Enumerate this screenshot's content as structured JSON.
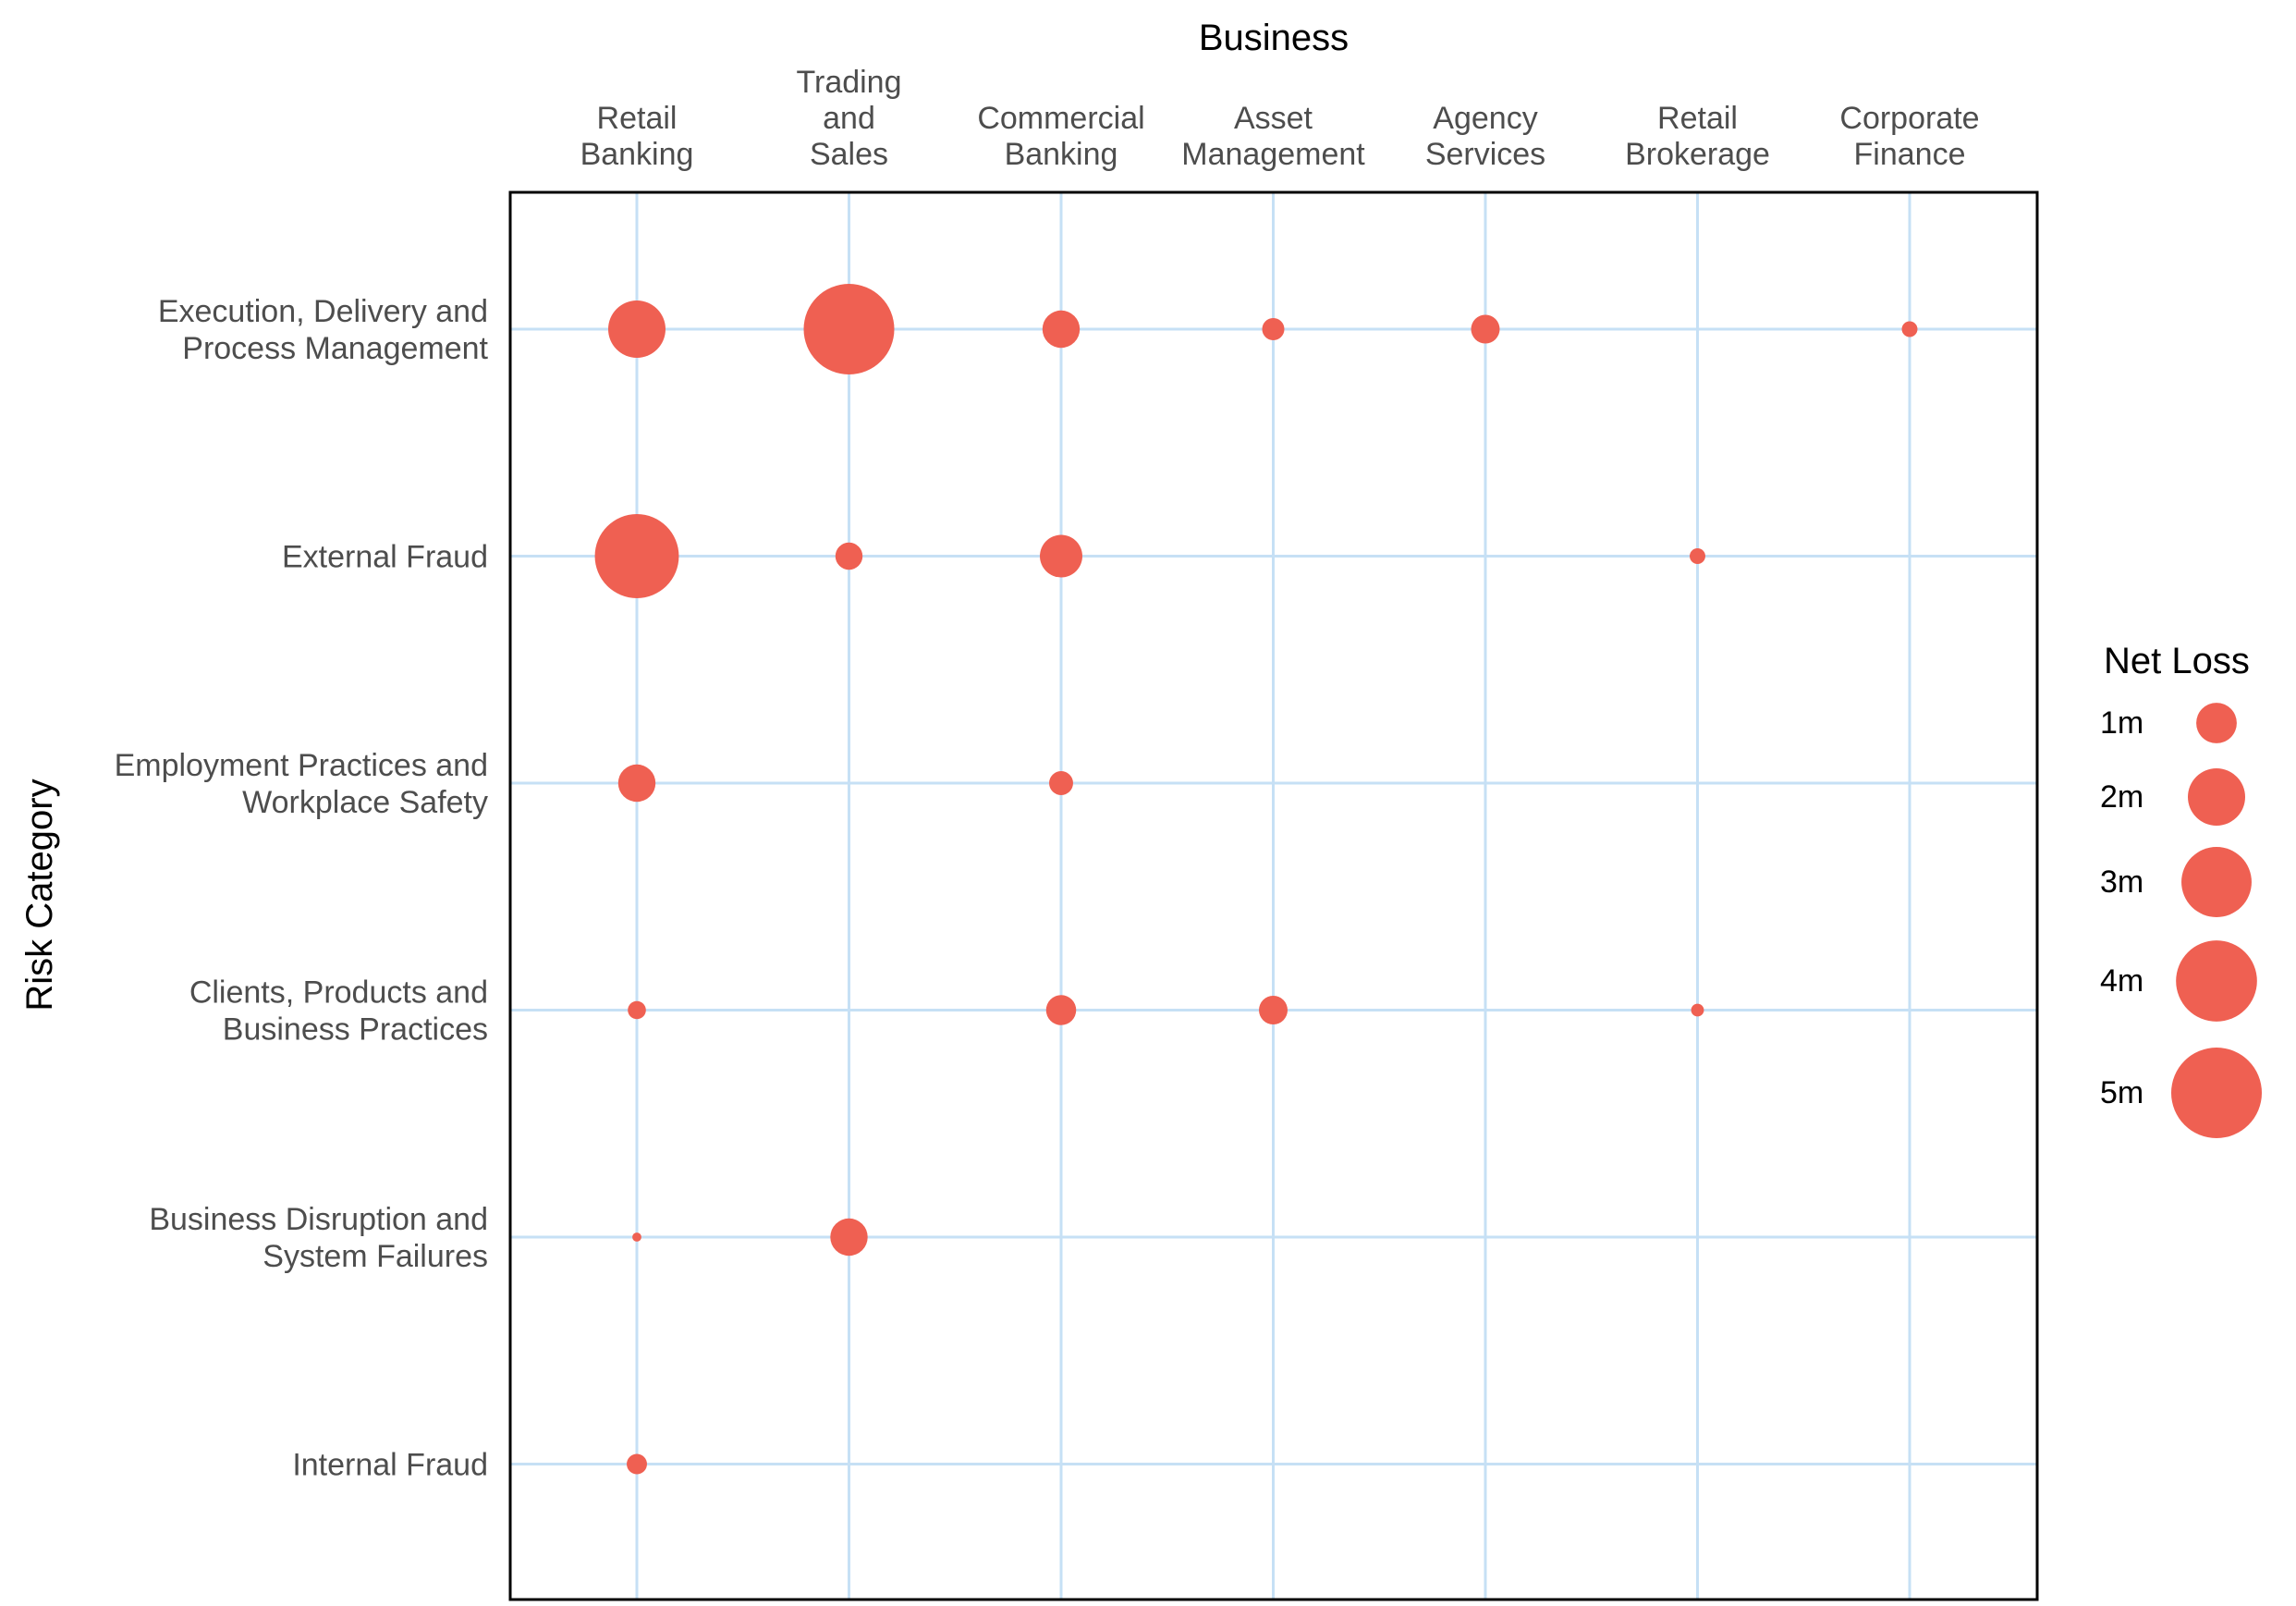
{
  "chart_data": {
    "type": "scatter",
    "subtype": "bubble",
    "xlabel": "Business",
    "ylabel": "Risk Category",
    "x_axis_position": "top",
    "categories_x": [
      "Retail\nBanking",
      "Trading\nand\nSales",
      "Commercial\nBanking",
      "Asset\nManagement",
      "Agency\nServices",
      "Retail\nBrokerage",
      "Corporate\nFinance"
    ],
    "categories_y": [
      "Execution, Delivery and\nProcess Management",
      "External Fraud",
      "Employment Practices and\nWorkplace Safety",
      "Clients, Products and\nBusiness Practices",
      "Business Disruption and\nSystem Failures",
      "Internal Fraud"
    ],
    "points": [
      {
        "x": "Retail\nBanking",
        "y": "Execution, Delivery and\nProcess Management",
        "value": 2.0
      },
      {
        "x": "Trading\nand\nSales",
        "y": "Execution, Delivery and\nProcess Management",
        "value": 5.0
      },
      {
        "x": "Commercial\nBanking",
        "y": "Execution, Delivery and\nProcess Management",
        "value": 0.85
      },
      {
        "x": "Asset\nManagement",
        "y": "Execution, Delivery and\nProcess Management",
        "value": 0.3
      },
      {
        "x": "Agency\nServices",
        "y": "Execution, Delivery and\nProcess Management",
        "value": 0.5
      },
      {
        "x": "Corporate\nFinance",
        "y": "Execution, Delivery and\nProcess Management",
        "value": 0.15
      },
      {
        "x": "Retail\nBanking",
        "y": "External Fraud",
        "value": 4.3
      },
      {
        "x": "Trading\nand\nSales",
        "y": "External Fraud",
        "value": 0.45
      },
      {
        "x": "Commercial\nBanking",
        "y": "External Fraud",
        "value": 1.1
      },
      {
        "x": "Retail\nBrokerage",
        "y": "External Fraud",
        "value": 0.15
      },
      {
        "x": "Retail\nBanking",
        "y": "Employment Practices and\nWorkplace Safety",
        "value": 0.85
      },
      {
        "x": "Commercial\nBanking",
        "y": "Employment Practices and\nWorkplace Safety",
        "value": 0.35
      },
      {
        "x": "Retail\nBanking",
        "y": "Clients, Products and\nBusiness Practices",
        "value": 0.2
      },
      {
        "x": "Commercial\nBanking",
        "y": "Clients, Products and\nBusiness Practices",
        "value": 0.55
      },
      {
        "x": "Asset\nManagement",
        "y": "Clients, Products and\nBusiness Practices",
        "value": 0.5
      },
      {
        "x": "Retail\nBrokerage",
        "y": "Clients, Products and\nBusiness Practices",
        "value": 0.1
      },
      {
        "x": "Retail\nBanking",
        "y": "Business Disruption and\nSystem Failures",
        "value": 0.05
      },
      {
        "x": "Trading\nand\nSales",
        "y": "Business Disruption and\nSystem Failures",
        "value": 0.85
      },
      {
        "x": "Retail\nBanking",
        "y": "Internal Fraud",
        "value": 0.25
      }
    ],
    "size_legend": {
      "title": "Net Loss",
      "breaks": [
        1,
        2,
        3,
        4,
        5
      ],
      "labels": [
        "1m",
        "2m",
        "3m",
        "4m",
        "5m"
      ]
    },
    "grid": true,
    "legend_position": "right",
    "colors": {
      "point": "#EF6052",
      "grid": "#C6E0F5",
      "panel_border": "#000000",
      "tick_text": "#4d4d4d",
      "title_text": "#000000"
    }
  }
}
